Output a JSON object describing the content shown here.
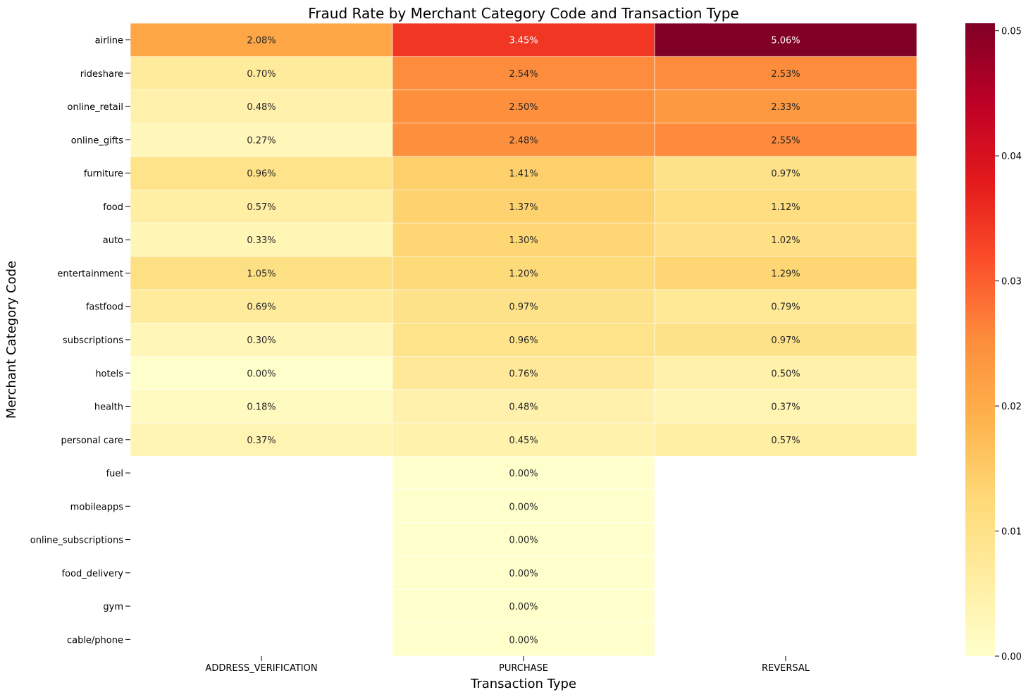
{
  "chart_data": {
    "type": "heatmap",
    "title": "Fraud Rate by Merchant Category Code and Transaction Type",
    "xlabel": "Transaction Type",
    "ylabel": "Merchant Category Code",
    "columns": [
      "ADDRESS_VERIFICATION",
      "PURCHASE",
      "REVERSAL"
    ],
    "rows": [
      "airline",
      "rideshare",
      "online_retail",
      "online_gifts",
      "furniture",
      "food",
      "auto",
      "entertainment",
      "fastfood",
      "subscriptions",
      "hotels",
      "health",
      "personal care",
      "fuel",
      "mobileapps",
      "online_subscriptions",
      "food_delivery",
      "gym",
      "cable/phone"
    ],
    "values": [
      [
        0.0208,
        0.0345,
        0.0506
      ],
      [
        0.007,
        0.0254,
        0.0253
      ],
      [
        0.0048,
        0.025,
        0.0233
      ],
      [
        0.0027,
        0.0248,
        0.0255
      ],
      [
        0.0096,
        0.0141,
        0.0097
      ],
      [
        0.0057,
        0.0137,
        0.0112
      ],
      [
        0.0033,
        0.013,
        0.0102
      ],
      [
        0.0105,
        0.012,
        0.0129
      ],
      [
        0.0069,
        0.0097,
        0.0079
      ],
      [
        0.003,
        0.0096,
        0.0097
      ],
      [
        0.0,
        0.0076,
        0.005
      ],
      [
        0.0018,
        0.0048,
        0.0037
      ],
      [
        0.0037,
        0.0045,
        0.0057
      ],
      [
        null,
        0.0,
        null
      ],
      [
        null,
        0.0,
        null
      ],
      [
        null,
        0.0,
        null
      ],
      [
        null,
        0.0,
        null
      ],
      [
        null,
        0.0,
        null
      ],
      [
        null,
        0.0,
        null
      ]
    ],
    "labels": [
      [
        "2.08%",
        "3.45%",
        "5.06%"
      ],
      [
        "0.70%",
        "2.54%",
        "2.53%"
      ],
      [
        "0.48%",
        "2.50%",
        "2.33%"
      ],
      [
        "0.27%",
        "2.48%",
        "2.55%"
      ],
      [
        "0.96%",
        "1.41%",
        "0.97%"
      ],
      [
        "0.57%",
        "1.37%",
        "1.12%"
      ],
      [
        "0.33%",
        "1.30%",
        "1.02%"
      ],
      [
        "1.05%",
        "1.20%",
        "1.29%"
      ],
      [
        "0.69%",
        "0.97%",
        "0.79%"
      ],
      [
        "0.30%",
        "0.96%",
        "0.97%"
      ],
      [
        "0.00%",
        "0.76%",
        "0.50%"
      ],
      [
        "0.18%",
        "0.48%",
        "0.37%"
      ],
      [
        "0.37%",
        "0.45%",
        "0.57%"
      ],
      [
        "",
        "0.00%",
        ""
      ],
      [
        "",
        "0.00%",
        ""
      ],
      [
        "",
        "0.00%",
        ""
      ],
      [
        "",
        "0.00%",
        ""
      ],
      [
        "",
        "0.00%",
        ""
      ],
      [
        "",
        "0.00%",
        ""
      ]
    ],
    "colorbar": {
      "colormap": "YlOrRd",
      "range": [
        0.0,
        0.0506
      ],
      "ticks": [
        0.0,
        0.01,
        0.02,
        0.03,
        0.04,
        0.05
      ],
      "tick_labels": [
        "0.00",
        "0.01",
        "0.02",
        "0.03",
        "0.04",
        "0.05"
      ]
    }
  }
}
